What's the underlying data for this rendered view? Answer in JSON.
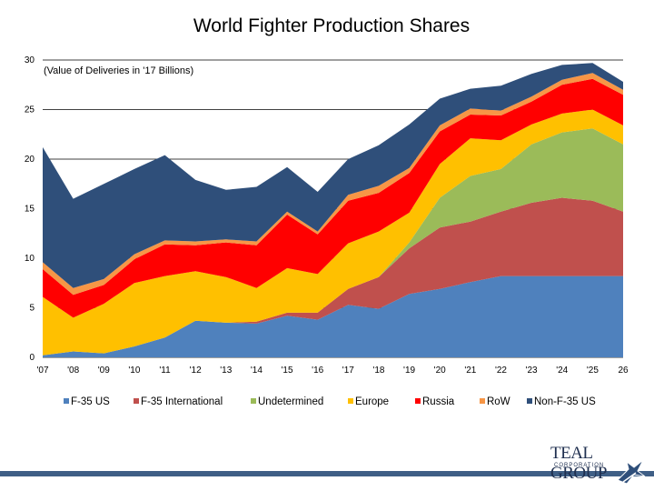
{
  "chart_data": {
    "type": "area",
    "stacked": true,
    "title": "World Fighter Production Shares",
    "subtitle": "(Value of Deliveries in '17 Billions)",
    "xlabel": "",
    "ylabel": "",
    "ylim": [
      0,
      30
    ],
    "yticks": [
      0,
      5,
      10,
      15,
      20,
      25,
      30
    ],
    "categories": [
      "'07",
      "'08",
      "'09",
      "'10",
      "'11",
      "'12",
      "'13",
      "'14",
      "'15",
      "'16",
      "'17",
      "'18",
      "'19",
      "'20",
      "'21",
      "'22",
      "'23",
      "'24",
      "'25",
      "26"
    ],
    "series": [
      {
        "name": "F-35 US",
        "color": "#4f81bd",
        "values": [
          0.2,
          0.6,
          0.4,
          1.1,
          2.0,
          3.7,
          3.5,
          3.4,
          4.2,
          3.8,
          5.3,
          4.9,
          6.4,
          6.9,
          7.6,
          8.2,
          8.2,
          8.2,
          8.2,
          8.2
        ]
      },
      {
        "name": "F-35 International",
        "color": "#c0504d",
        "values": [
          0,
          0,
          0,
          0,
          0,
          0,
          0,
          0.2,
          0.3,
          0.7,
          1.6,
          3.2,
          4.6,
          6.2,
          6.1,
          6.5,
          7.4,
          7.9,
          7.6,
          6.5
        ]
      },
      {
        "name": "Undetermined",
        "color": "#9bbb59",
        "values": [
          0,
          0,
          0,
          0,
          0,
          0,
          0,
          0,
          0,
          0,
          0,
          0,
          0.6,
          3.0,
          4.6,
          4.3,
          5.9,
          6.6,
          7.3,
          6.8
        ]
      },
      {
        "name": "Europe",
        "color": "#ffc000",
        "values": [
          5.9,
          3.4,
          5.0,
          6.4,
          6.2,
          5.0,
          4.6,
          3.4,
          4.5,
          3.9,
          4.6,
          4.6,
          3.0,
          3.4,
          3.8,
          2.9,
          2.0,
          1.9,
          1.9,
          1.9
        ]
      },
      {
        "name": "Russia",
        "color": "#ff0000",
        "values": [
          2.8,
          2.3,
          1.9,
          2.4,
          3.2,
          2.6,
          3.5,
          4.3,
          5.4,
          4.0,
          4.3,
          3.9,
          4.0,
          3.3,
          2.4,
          2.5,
          2.3,
          2.9,
          3.1,
          3.1
        ]
      },
      {
        "name": "RoW",
        "color": "#f79646",
        "values": [
          0.7,
          0.7,
          0.6,
          0.5,
          0.4,
          0.4,
          0.3,
          0.4,
          0.3,
          0.3,
          0.6,
          0.7,
          0.5,
          0.6,
          0.6,
          0.5,
          0.5,
          0.5,
          0.6,
          0.5
        ]
      },
      {
        "name": "Non-F-35 US",
        "color": "#2f4f7a",
        "values": [
          11.6,
          9.0,
          9.6,
          8.6,
          8.6,
          6.2,
          5.0,
          5.5,
          4.5,
          4.0,
          3.6,
          4.1,
          4.4,
          2.7,
          2.0,
          2.5,
          2.3,
          1.5,
          1.0,
          0.8
        ]
      }
    ],
    "grid": true,
    "legend_position": "bottom"
  },
  "branding": {
    "logo_line1": "TEAL GROUP",
    "logo_line2": "CORPORATION"
  },
  "colors": {
    "bottom_bar": "#3f5f86",
    "gridline": "#000000"
  }
}
